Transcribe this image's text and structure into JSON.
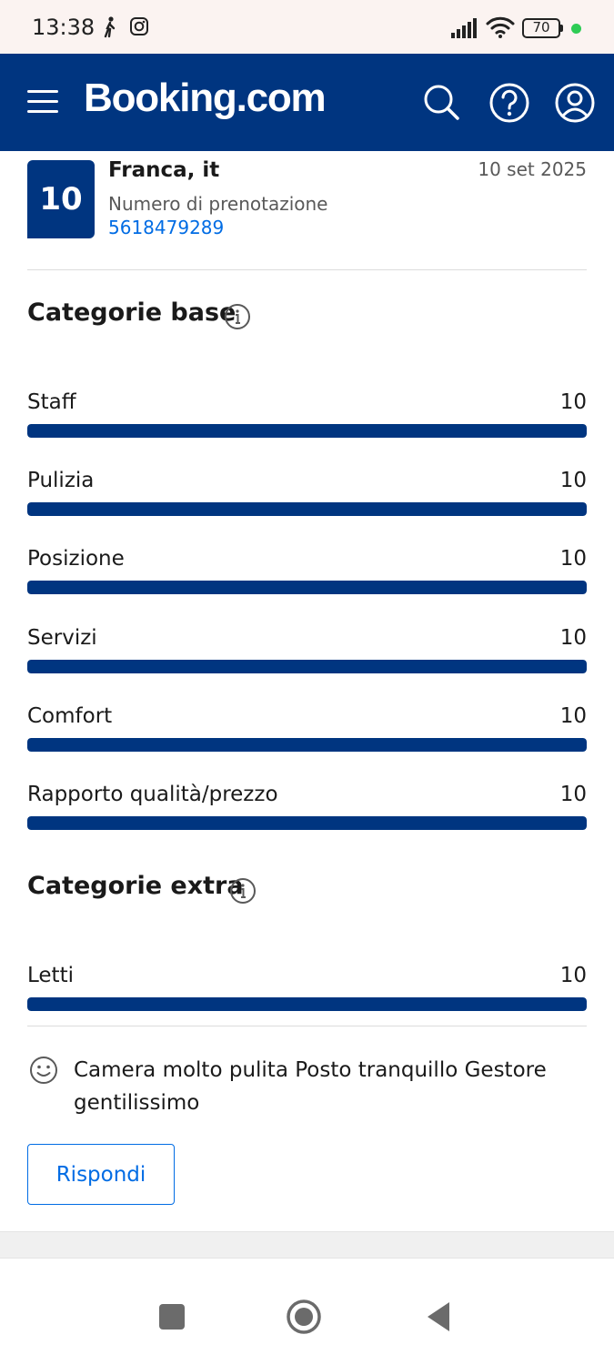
{
  "status_bar": {
    "time": "13:38",
    "battery": "70",
    "left_icons": [
      "walk-icon",
      "instagram-icon"
    ],
    "right_icons": [
      "signal-icon",
      "wifi-icon",
      "battery-icon",
      "dot-indicator-icon"
    ]
  },
  "header": {
    "brand": "Booking.com",
    "icons": [
      "menu-icon",
      "search-icon",
      "help-icon",
      "account-icon"
    ],
    "color": "#003580"
  },
  "review": {
    "score": "10",
    "guest": "Franca, it",
    "date": "10 set 2025",
    "booking_label": "Numero di prenotazione",
    "booking_number": "5618479289",
    "text": "Camera molto pulita Posto tranquillo Gestore gentilissimo",
    "reply_label": "Rispondi"
  },
  "base_categories": {
    "title": "Categorie base",
    "items": [
      {
        "label": "Staff",
        "value": "10",
        "fill": 1.0
      },
      {
        "label": "Pulizia",
        "value": "10",
        "fill": 1.0
      },
      {
        "label": "Posizione",
        "value": "10",
        "fill": 1.0
      },
      {
        "label": "Servizi",
        "value": "10",
        "fill": 1.0
      },
      {
        "label": "Comfort",
        "value": "10",
        "fill": 1.0
      },
      {
        "label": "Rapporto qualità/prezzo",
        "value": "10",
        "fill": 1.0
      }
    ]
  },
  "extra_categories": {
    "title": "Categorie extra",
    "items": [
      {
        "label": "Letti",
        "value": "10",
        "fill": 1.0
      }
    ]
  },
  "nav_bar": {
    "buttons": [
      "recents-button",
      "home-button",
      "back-button"
    ]
  },
  "colors": {
    "brand": "#003580",
    "link": "#006ce4"
  }
}
